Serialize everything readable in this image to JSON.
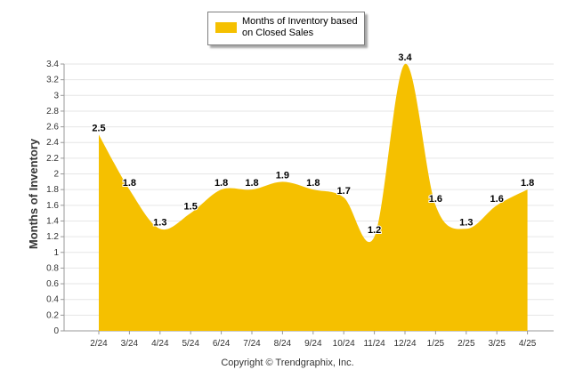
{
  "chart_data": {
    "type": "area",
    "categories": [
      "2/24",
      "3/24",
      "4/24",
      "5/24",
      "6/24",
      "7/24",
      "8/24",
      "9/24",
      "10/24",
      "11/24",
      "12/24",
      "1/25",
      "2/25",
      "3/25",
      "4/25"
    ],
    "series": [
      {
        "name": "Months of Inventory based on Closed Sales",
        "values": [
          2.5,
          1.8,
          1.3,
          1.5,
          1.8,
          1.8,
          1.9,
          1.8,
          1.7,
          1.2,
          3.4,
          1.6,
          1.3,
          1.6,
          1.8
        ],
        "labels": [
          "2.5",
          "1.8",
          "1.3",
          "1.5",
          "1.8",
          "1.8",
          "1.9",
          "1.8",
          "1.7",
          "1.2",
          "3.4",
          "1.6",
          "1.3",
          "1.6",
          "1.8"
        ],
        "color": "#f5c000"
      }
    ],
    "yticks": [
      "0",
      "0.2",
      "0.4",
      "0.6",
      "0.8",
      "1",
      "1.2",
      "1.4",
      "1.6",
      "1.8",
      "2",
      "2.2",
      "2.4",
      "2.6",
      "2.8",
      "3",
      "3.2",
      "3.4"
    ],
    "ylim": [
      0,
      3.4
    ],
    "ylabel": "Months of Inventory",
    "xlabel": "",
    "grid": true,
    "legend_position": "top-center"
  },
  "footer": {
    "copyright": "Copyright © Trendgraphix, Inc."
  }
}
